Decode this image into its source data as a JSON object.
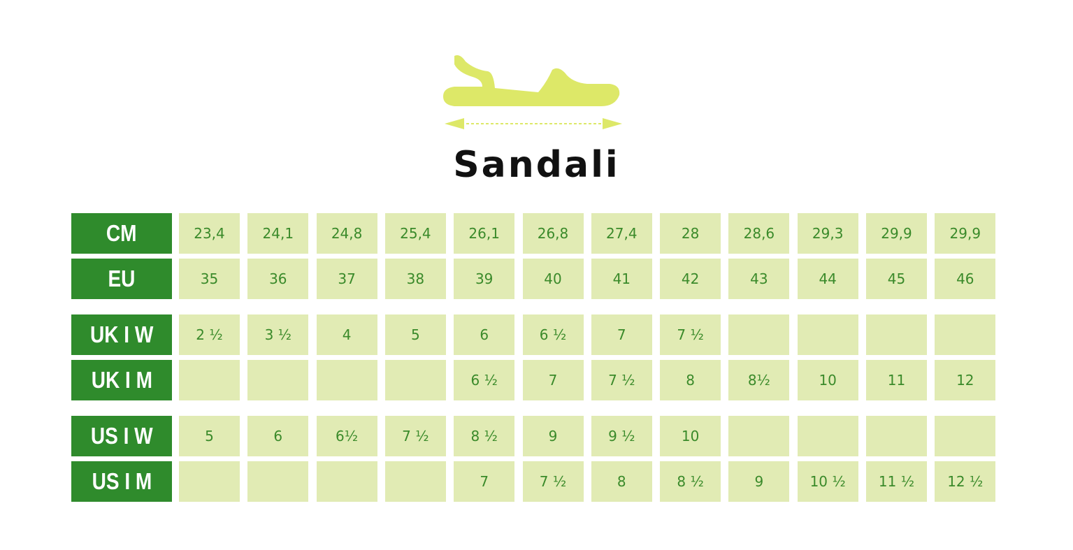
{
  "title": "Sandali",
  "table": {
    "rows": [
      {
        "label": "CM",
        "cells": [
          "23,4",
          "24,1",
          "24,8",
          "25,4",
          "26,1",
          "26,8",
          "27,4",
          "28",
          "28,6",
          "29,3",
          "29,9",
          "29,9"
        ]
      },
      {
        "label": "EU",
        "cells": [
          "35",
          "36",
          "37",
          "38",
          "39",
          "40",
          "41",
          "42",
          "43",
          "44",
          "45",
          "46"
        ]
      },
      {
        "label": "UK I W",
        "cells": [
          "2 ½",
          "3 ½",
          "4",
          "5",
          "6",
          "6 ½",
          "7",
          "7 ½",
          null,
          null,
          null,
          null
        ]
      },
      {
        "label": "UK I M",
        "cells": [
          null,
          null,
          null,
          null,
          "6 ½",
          "7",
          "7 ½",
          "8",
          "8½",
          "10",
          "11",
          "12"
        ]
      },
      {
        "label": "US I W",
        "cells": [
          "5",
          "6",
          "6½",
          "7 ½",
          "8 ½",
          "9",
          "9 ½",
          "10",
          null,
          null,
          null,
          null
        ]
      },
      {
        "label": "US I M",
        "cells": [
          null,
          null,
          null,
          null,
          "7",
          "7 ½",
          "8",
          "8 ½",
          "9",
          "10 ½",
          "11 ½",
          "12 ½"
        ]
      }
    ]
  }
}
